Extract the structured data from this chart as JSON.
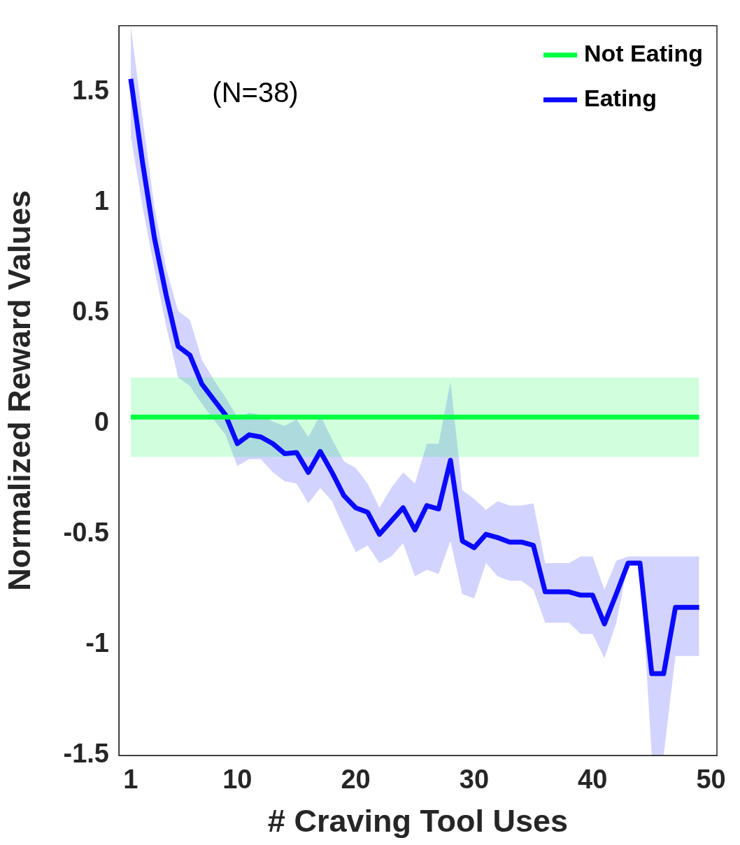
{
  "chart_data": {
    "type": "line",
    "xlabel": "# Craving Tool Uses",
    "ylabel": "Normalized Reward Values",
    "annotations": [
      "(N=38)"
    ],
    "x": [
      1,
      2,
      3,
      4,
      5,
      6,
      7,
      8,
      9,
      10,
      11,
      12,
      13,
      14,
      15,
      16,
      17,
      18,
      19,
      20,
      21,
      22,
      23,
      24,
      25,
      26,
      27,
      28,
      29,
      30,
      31,
      32,
      33,
      34,
      35,
      36,
      37,
      38,
      39,
      40,
      41,
      42,
      43,
      44,
      45,
      46,
      47,
      48,
      49
    ],
    "xlim": [
      0,
      50.5
    ],
    "xticks": [
      1,
      10,
      20,
      30,
      40,
      50
    ],
    "ylim": [
      -1.5,
      1.8
    ],
    "yticks": [
      -1.5,
      -1,
      -0.5,
      0,
      0.5,
      1,
      1.5
    ],
    "grid": false,
    "legend": "top right",
    "marker": "none",
    "line_style": "solid",
    "series": [
      {
        "name": "Not Eating",
        "color": "#00ff40",
        "values": [
          0.03,
          0.03,
          0.03,
          0.03,
          0.03,
          0.03,
          0.03,
          0.03,
          0.03,
          0.03,
          0.03,
          0.03,
          0.03,
          0.03,
          0.03,
          0.03,
          0.03,
          0.03,
          0.03,
          0.03,
          0.03,
          0.03,
          0.03,
          0.03,
          0.03,
          0.03,
          0.03,
          0.03,
          0.03,
          0.03,
          0.03,
          0.03,
          0.03,
          0.03,
          0.03,
          0.03,
          0.03,
          0.03,
          0.03,
          0.03,
          0.03,
          0.03,
          0.03,
          0.03,
          0.03,
          0.03,
          0.03,
          0.03,
          0.03
        ],
        "lower": [
          -0.15,
          -0.15,
          -0.15,
          -0.15,
          -0.15,
          -0.15,
          -0.15,
          -0.15,
          -0.15,
          -0.15,
          -0.15,
          -0.15,
          -0.15,
          -0.15,
          -0.15,
          -0.15,
          -0.15,
          -0.15,
          -0.15,
          -0.15,
          -0.15,
          -0.15,
          -0.15,
          -0.15,
          -0.15,
          -0.15,
          -0.15,
          -0.15,
          -0.15,
          -0.15,
          -0.15,
          -0.15,
          -0.15,
          -0.15,
          -0.15,
          -0.15,
          -0.15,
          -0.15,
          -0.15,
          -0.15,
          -0.15,
          -0.15,
          -0.15,
          -0.15,
          -0.15,
          -0.15,
          -0.15,
          -0.15,
          -0.15
        ],
        "upper": [
          0.21,
          0.21,
          0.21,
          0.21,
          0.21,
          0.21,
          0.21,
          0.21,
          0.21,
          0.21,
          0.21,
          0.21,
          0.21,
          0.21,
          0.21,
          0.21,
          0.21,
          0.21,
          0.21,
          0.21,
          0.21,
          0.21,
          0.21,
          0.21,
          0.21,
          0.21,
          0.21,
          0.21,
          0.21,
          0.21,
          0.21,
          0.21,
          0.21,
          0.21,
          0.21,
          0.21,
          0.21,
          0.21,
          0.21,
          0.21,
          0.21,
          0.21,
          0.21,
          0.21,
          0.21,
          0.21,
          0.21,
          0.21,
          0.21
        ]
      },
      {
        "name": "Eating",
        "color": "#0a0aff",
        "values": [
          1.56,
          1.18,
          0.84,
          0.58,
          0.35,
          0.31,
          0.18,
          0.11,
          0.04,
          -0.09,
          -0.05,
          -0.06,
          -0.09,
          -0.135,
          -0.13,
          -0.22,
          -0.125,
          -0.22,
          -0.325,
          -0.38,
          -0.4,
          -0.5,
          -0.44,
          -0.38,
          -0.48,
          -0.37,
          -0.385,
          -0.165,
          -0.53,
          -0.56,
          -0.5,
          -0.515,
          -0.535,
          -0.535,
          -0.55,
          -0.76,
          -0.76,
          -0.76,
          -0.775,
          -0.775,
          -0.905,
          -0.77,
          -0.63,
          -0.63,
          -1.13,
          -1.13,
          -0.83,
          -0.83,
          -0.83
        ],
        "lower": [
          1.3,
          0.98,
          0.7,
          0.44,
          0.21,
          0.17,
          0.09,
          0.02,
          -0.05,
          -0.19,
          -0.16,
          -0.16,
          -0.22,
          -0.26,
          -0.27,
          -0.36,
          -0.29,
          -0.35,
          -0.47,
          -0.58,
          -0.55,
          -0.63,
          -0.6,
          -0.54,
          -0.69,
          -0.66,
          -0.68,
          -0.53,
          -0.77,
          -0.79,
          -0.63,
          -0.69,
          -0.71,
          -0.71,
          -0.75,
          -0.9,
          -0.9,
          -0.9,
          -0.95,
          -0.95,
          -1.06,
          -0.9,
          -0.63,
          -0.63,
          -1.5,
          -1.5,
          -1.05,
          -1.05,
          -1.05
        ],
        "upper": [
          1.8,
          1.38,
          0.98,
          0.7,
          0.51,
          0.47,
          0.29,
          0.2,
          0.12,
          0.03,
          0.05,
          0.04,
          0.01,
          -0.01,
          0.02,
          -0.06,
          0.04,
          -0.07,
          -0.17,
          -0.2,
          -0.27,
          -0.38,
          -0.29,
          -0.22,
          -0.27,
          -0.09,
          -0.09,
          0.19,
          -0.3,
          -0.34,
          -0.39,
          -0.35,
          -0.37,
          -0.37,
          -0.36,
          -0.63,
          -0.63,
          -0.63,
          -0.6,
          -0.6,
          -0.75,
          -0.62,
          -0.6,
          -0.6,
          -0.6,
          -0.6,
          -0.6,
          -0.6,
          -0.6
        ]
      }
    ]
  }
}
